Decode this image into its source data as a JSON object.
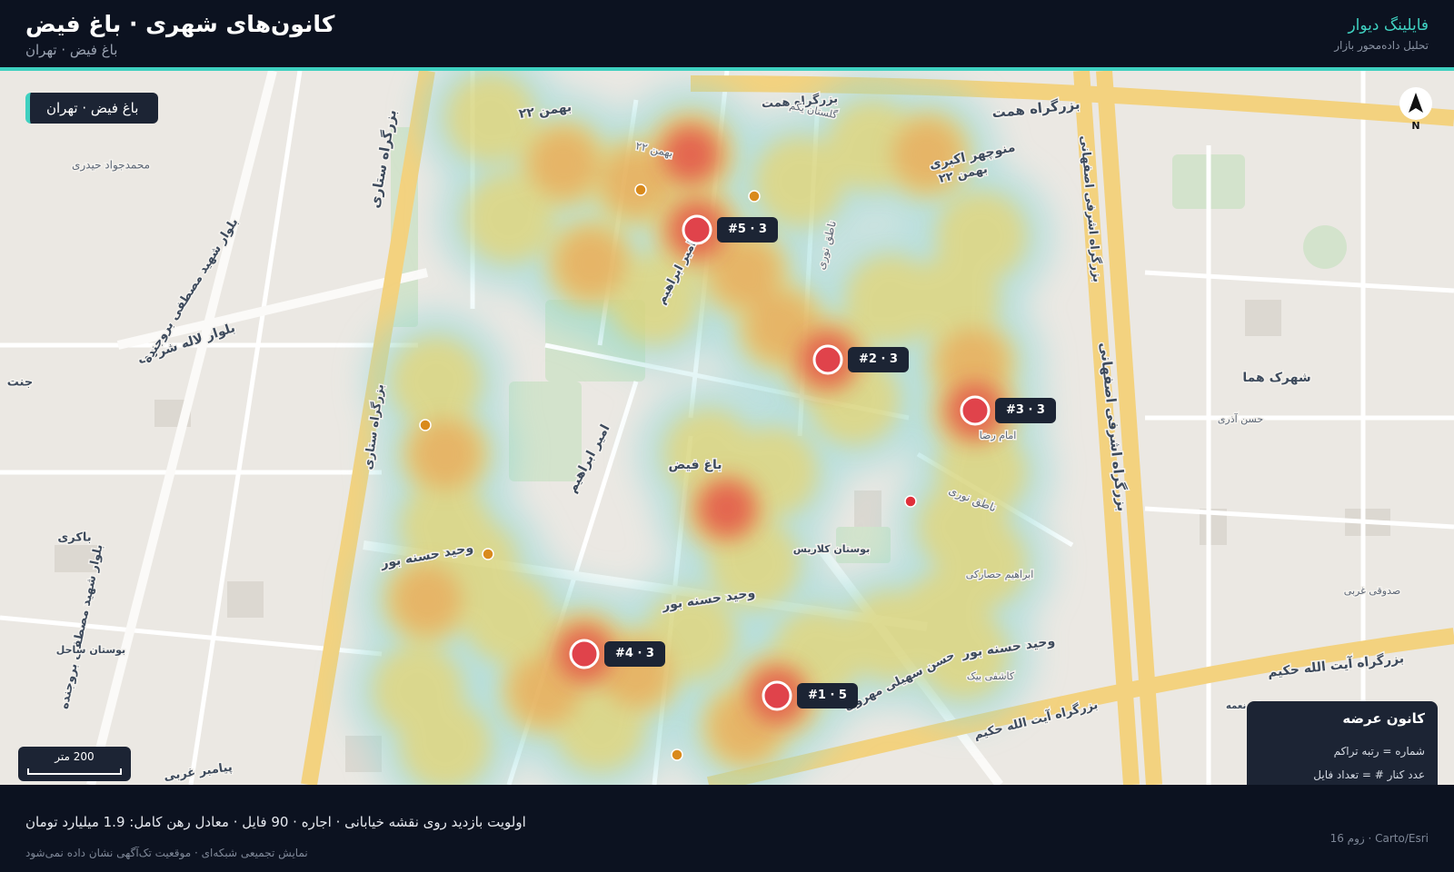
{
  "header": {
    "title": "کانون‌های شهری · باغ فیض",
    "subtitle": "باغ فیض · تهران"
  },
  "brand": {
    "name": "فایلینگ دیوار",
    "tagline": "تحلیل داده‌محور بازار"
  },
  "map": {
    "location_badge": "باغ فیض · تهران",
    "north": "N",
    "scale": "200 متر",
    "hotspots": [
      {
        "rank": 1,
        "count": 5,
        "label": "#1 · 5"
      },
      {
        "rank": 2,
        "count": 3,
        "label": "#2 · 3"
      },
      {
        "rank": 3,
        "count": 3,
        "label": "#3 · 3"
      },
      {
        "rank": 4,
        "count": 3,
        "label": "#4 · 3"
      },
      {
        "rank": 5,
        "count": 3,
        "label": "#5 · 3"
      }
    ],
    "streets": [
      "بزرگراه همت",
      "بزرگراه همت",
      "بزرگراه ستاری",
      "بزرگراه ستاری",
      "بزرگراه اشرفی اصفهانی",
      "بزرگراه اشرفی اصفهانی",
      "بزرگراه آیت الله حکیم",
      "بزرگراه آیت الله حکیم",
      "بلوار لاله شرقی",
      "بلوار شهید مصطفی بروجنده",
      "بلوار شهید مصطفی بروجنده",
      "وحید حسنه بور",
      "وحید حسنه بور",
      "وحید حسنه بور",
      "حسن سهیلی مهروی",
      "امیر ابراهیم",
      "امیر ابراهیم",
      "۲۲ بهمن",
      "۲۲ بهمن",
      "منوچهر اکبری",
      "۲۲ بهمن",
      "باغ فیض",
      "بوستان کلاریس",
      "شهرک هما",
      "جنت",
      "بوستان ساحل",
      "پیامبر غربی",
      "محمدجواد حیدری",
      "باکری",
      "صدوقی غربی",
      "گلستان یکم",
      "ناطق نوری",
      "ناطق نوری",
      "امام رضا",
      "بوستان نعمه",
      "کاشفی بیک",
      "ابراهیم حصارکی",
      "حسن آذری"
    ]
  },
  "legend": {
    "title": "کانون عرضه",
    "items": [
      "شماره = رتبه تراکم",
      "عدد کنار # = تعداد فایل"
    ]
  },
  "footer": {
    "summary": "اولویت بازدید روی نقشه خیابانی · اجاره · 90 فایل · معادل رهن کامل: 1.9 میلیارد تومان",
    "note": "نمایش تجمیعی شبکه‌ای · موقعیت تک‌آگهی نشان داده نمی‌شود",
    "attribution": "Carto/Esri · زوم 16"
  }
}
